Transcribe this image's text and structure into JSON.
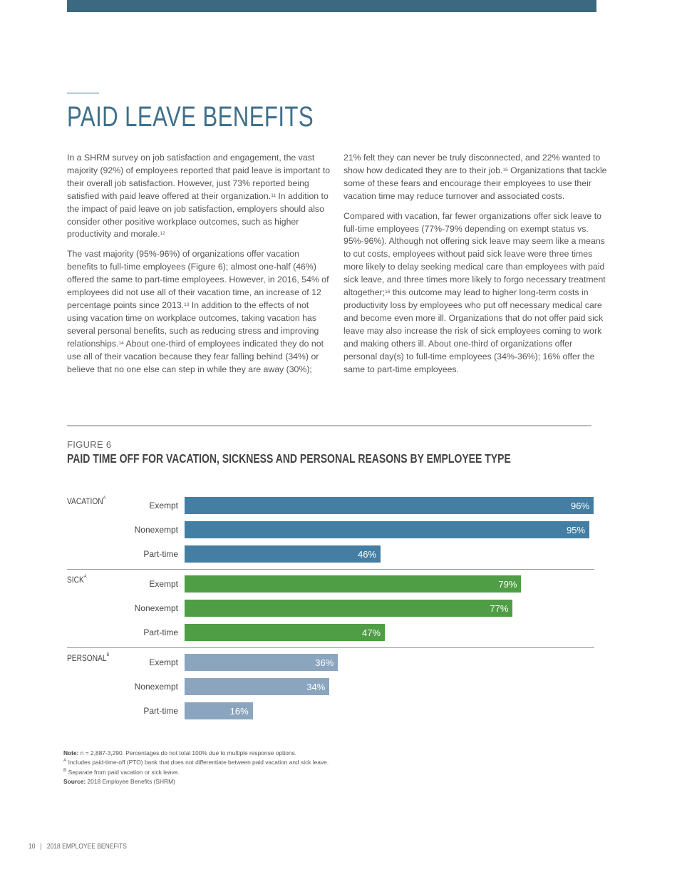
{
  "header": {
    "title": "PAID LEAVE BENEFITS"
  },
  "body": {
    "columns": [
      [
        [
          "In a SHRM survey on job satisfaction and engagement, the vast majority (92%) of employees reported that paid leave is important to their overall job satisfaction. However, just 73% reported being satisfied with paid leave offered at their organization.",
          {
            "sup": "11"
          },
          " In addition to the impact of paid leave on job satisfaction, employers should also consider other positive workplace outcomes, such as higher productivity and morale.",
          {
            "sup": "12"
          }
        ],
        [
          "The vast majority (95%-96%) of organizations offer vacation benefits to full-time employees (Figure 6); almost one-half (46%) offered the same to part-time employees. However, in 2016, 54% of employees did not use all of their vacation time, an increase of 12 percentage points since 2013.",
          {
            "sup": "13"
          },
          " In addition to the effects of not using vacation time on workplace outcomes, taking vacation has several personal benefits, such as reducing stress and improving relationships.",
          {
            "sup": "14"
          },
          " About one-third of employees indicated they do not use all of their vacation because they fear falling behind (34%) or believe that no one else can step in while they are away (30%);"
        ]
      ],
      [
        [
          "21% felt they can never be truly disconnected, and 22% wanted to show how dedicated they are to their job.",
          {
            "sup": "15"
          },
          " Organizations that tackle some of these fears and encourage their employees to use their vacation time may reduce turnover and associated costs."
        ],
        [
          "Compared with vacation, far fewer organizations offer sick leave to full-time employees (77%-79% depending on exempt status vs. 95%-96%). Although not offering sick leave may seem like a means to cut costs, employees without paid sick leave were three times more likely to delay seeking medical care than employees with paid sick leave, and three times more likely to forgo necessary treatment altogether;",
          {
            "sup": "16"
          },
          " this outcome may lead to higher long-term costs in productivity loss by employees who put off necessary medical care and become even more ill. Organizations that do not offer paid sick leave may also increase the risk of sick employees coming to work and making others ill. About one-third of organizations offer personal day(s) to full-time employees (34%-36%); 16% offer the same to part-time employees."
        ]
      ]
    ]
  },
  "figure": {
    "label": "FIGURE 6",
    "title": "PAID TIME OFF FOR VACATION, SICKNESS AND PERSONAL REASONS BY EMPLOYEE TYPE",
    "chart_data": {
      "type": "bar",
      "orientation": "horizontal",
      "categories": [
        "Exempt",
        "Nonexempt",
        "Part-time"
      ],
      "groups": [
        {
          "name": "VACATION",
          "marker": "A",
          "color": "#457ea3",
          "values": [
            96,
            95,
            46
          ],
          "value_labels": [
            "96%",
            "95%",
            "46%"
          ]
        },
        {
          "name": "SICK",
          "marker": "A",
          "color": "#4f9e45",
          "values": [
            79,
            77,
            47
          ],
          "value_labels": [
            "79%",
            "77%",
            "47%"
          ]
        },
        {
          "name": "PERSONAL",
          "marker": "B",
          "color": "#8ba5bf",
          "values": [
            36,
            34,
            16
          ],
          "value_labels": [
            "36%",
            "34%",
            "16%"
          ]
        }
      ]
    }
  },
  "notes": [
    {
      "label": "Note:",
      "text": " n = 2,887-3,290. Percentages do not total 100% due to multiple response options."
    },
    {
      "marker": "A",
      "text": " Includes paid-time-off (PTO) bank that does not differentiate between paid vacation and sick leave."
    },
    {
      "marker": "B",
      "text": " Separate from paid vacation or sick leave."
    },
    {
      "label": "Source:",
      "text": " 2018 Employee Benefits (SHRM)"
    }
  ],
  "footer": {
    "page": "10",
    "separator": "|",
    "text": "2018 EMPLOYEE BENEFITS"
  }
}
